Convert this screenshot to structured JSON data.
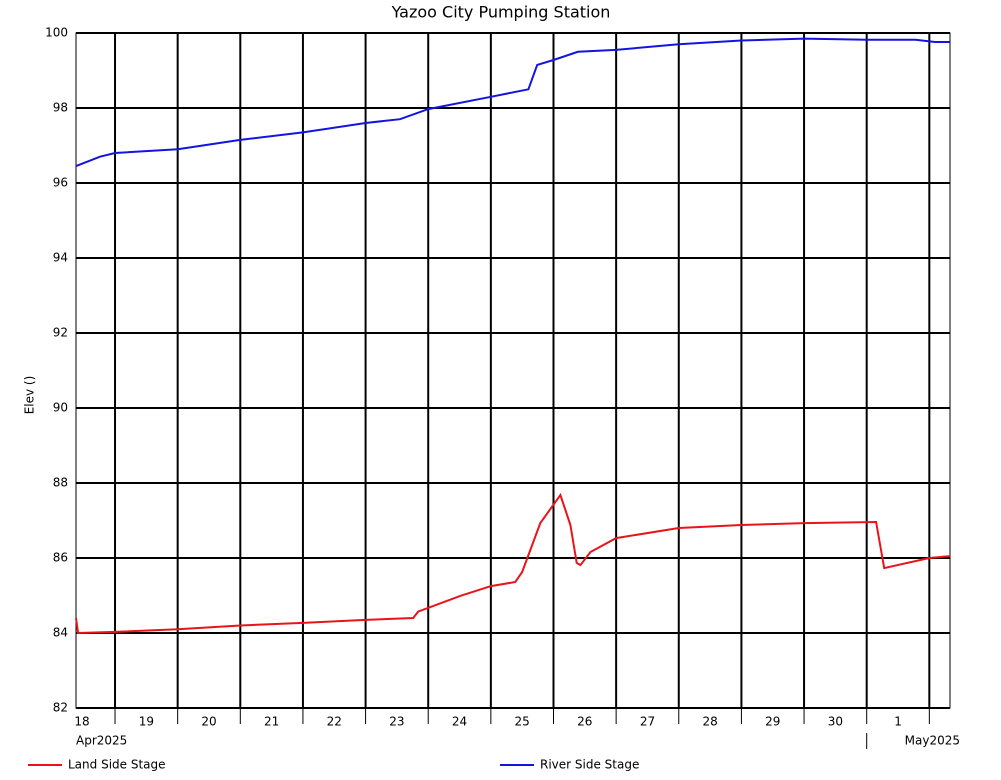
{
  "chart_data": {
    "type": "line",
    "title": "Yazoo City Pumping Station",
    "y_label": "Elev ()",
    "ylim": [
      82,
      100
    ],
    "yticks": [
      82,
      84,
      86,
      88,
      90,
      92,
      94,
      96,
      98,
      100
    ],
    "grid": true,
    "xlim": [
      0.377,
      14.33
    ],
    "xticks": [
      1,
      2,
      3,
      4,
      5,
      6,
      7,
      8,
      9,
      10,
      11,
      12,
      13,
      14
    ],
    "day_labels": [
      "18",
      "19",
      "20",
      "21",
      "22",
      "23",
      "24",
      "25",
      "26",
      "27",
      "28",
      "29",
      "30",
      "1",
      null
    ],
    "month_labels": [
      {
        "value": 0.377,
        "label": "Apr2025"
      },
      {
        "value": 13,
        "label": "May2025"
      }
    ],
    "legend": "bottom",
    "series": [
      {
        "name": "Land Side Stage",
        "color": "#e8141a",
        "x": [
          0.377,
          0.41,
          1,
          2,
          3,
          4,
          5,
          5.76,
          5.84,
          6.51,
          7,
          7.39,
          7.5,
          7.79,
          8.11,
          8.27,
          8.37,
          8.43,
          8.59,
          9,
          10,
          11,
          12,
          13.15,
          13.28,
          14,
          14.33
        ],
        "values": [
          84.4,
          84.0,
          84.03,
          84.1,
          84.2,
          84.27,
          84.35,
          84.4,
          84.57,
          84.99,
          85.25,
          85.36,
          85.63,
          86.93,
          87.68,
          86.88,
          85.87,
          85.81,
          86.16,
          86.53,
          86.8,
          86.88,
          86.93,
          86.96,
          85.73,
          86.0,
          86.05
        ]
      },
      {
        "name": "River Side Stage",
        "color": "#1414e0",
        "x": [
          0.377,
          0.76,
          1,
          2,
          3,
          4,
          5,
          5.55,
          6,
          7,
          7.6,
          7.74,
          8,
          8.39,
          9,
          10,
          11,
          12,
          13,
          13.78,
          14.09,
          14.33
        ],
        "values": [
          96.45,
          96.7,
          96.8,
          96.9,
          97.15,
          97.35,
          97.6,
          97.7,
          97.97,
          98.3,
          98.5,
          99.15,
          99.28,
          99.5,
          99.55,
          99.7,
          99.8,
          99.85,
          99.82,
          99.82,
          99.76,
          99.76
        ]
      }
    ]
  }
}
